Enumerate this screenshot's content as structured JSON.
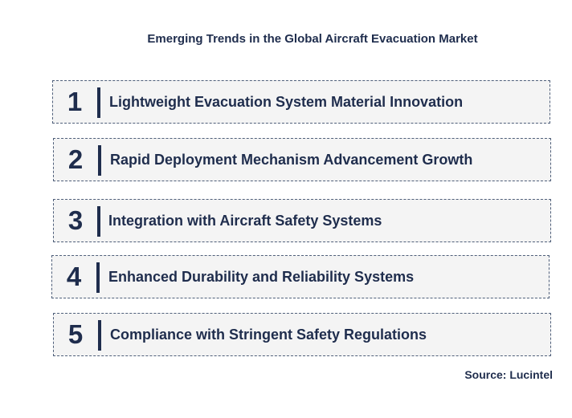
{
  "title": "Emerging Trends in the Global Aircraft Evacuation Market",
  "trends": [
    {
      "number": "1",
      "label": "Lightweight Evacuation System Material Innovation"
    },
    {
      "number": "2",
      "label": "Rapid Deployment Mechanism Advancement Growth"
    },
    {
      "number": "3",
      "label": "Integration with Aircraft Safety Systems"
    },
    {
      "number": "4",
      "label": "Enhanced Durability and Reliability Systems"
    },
    {
      "number": "5",
      "label": "Compliance with Stringent Safety Regulations"
    }
  ],
  "source": "Source: Lucintel"
}
